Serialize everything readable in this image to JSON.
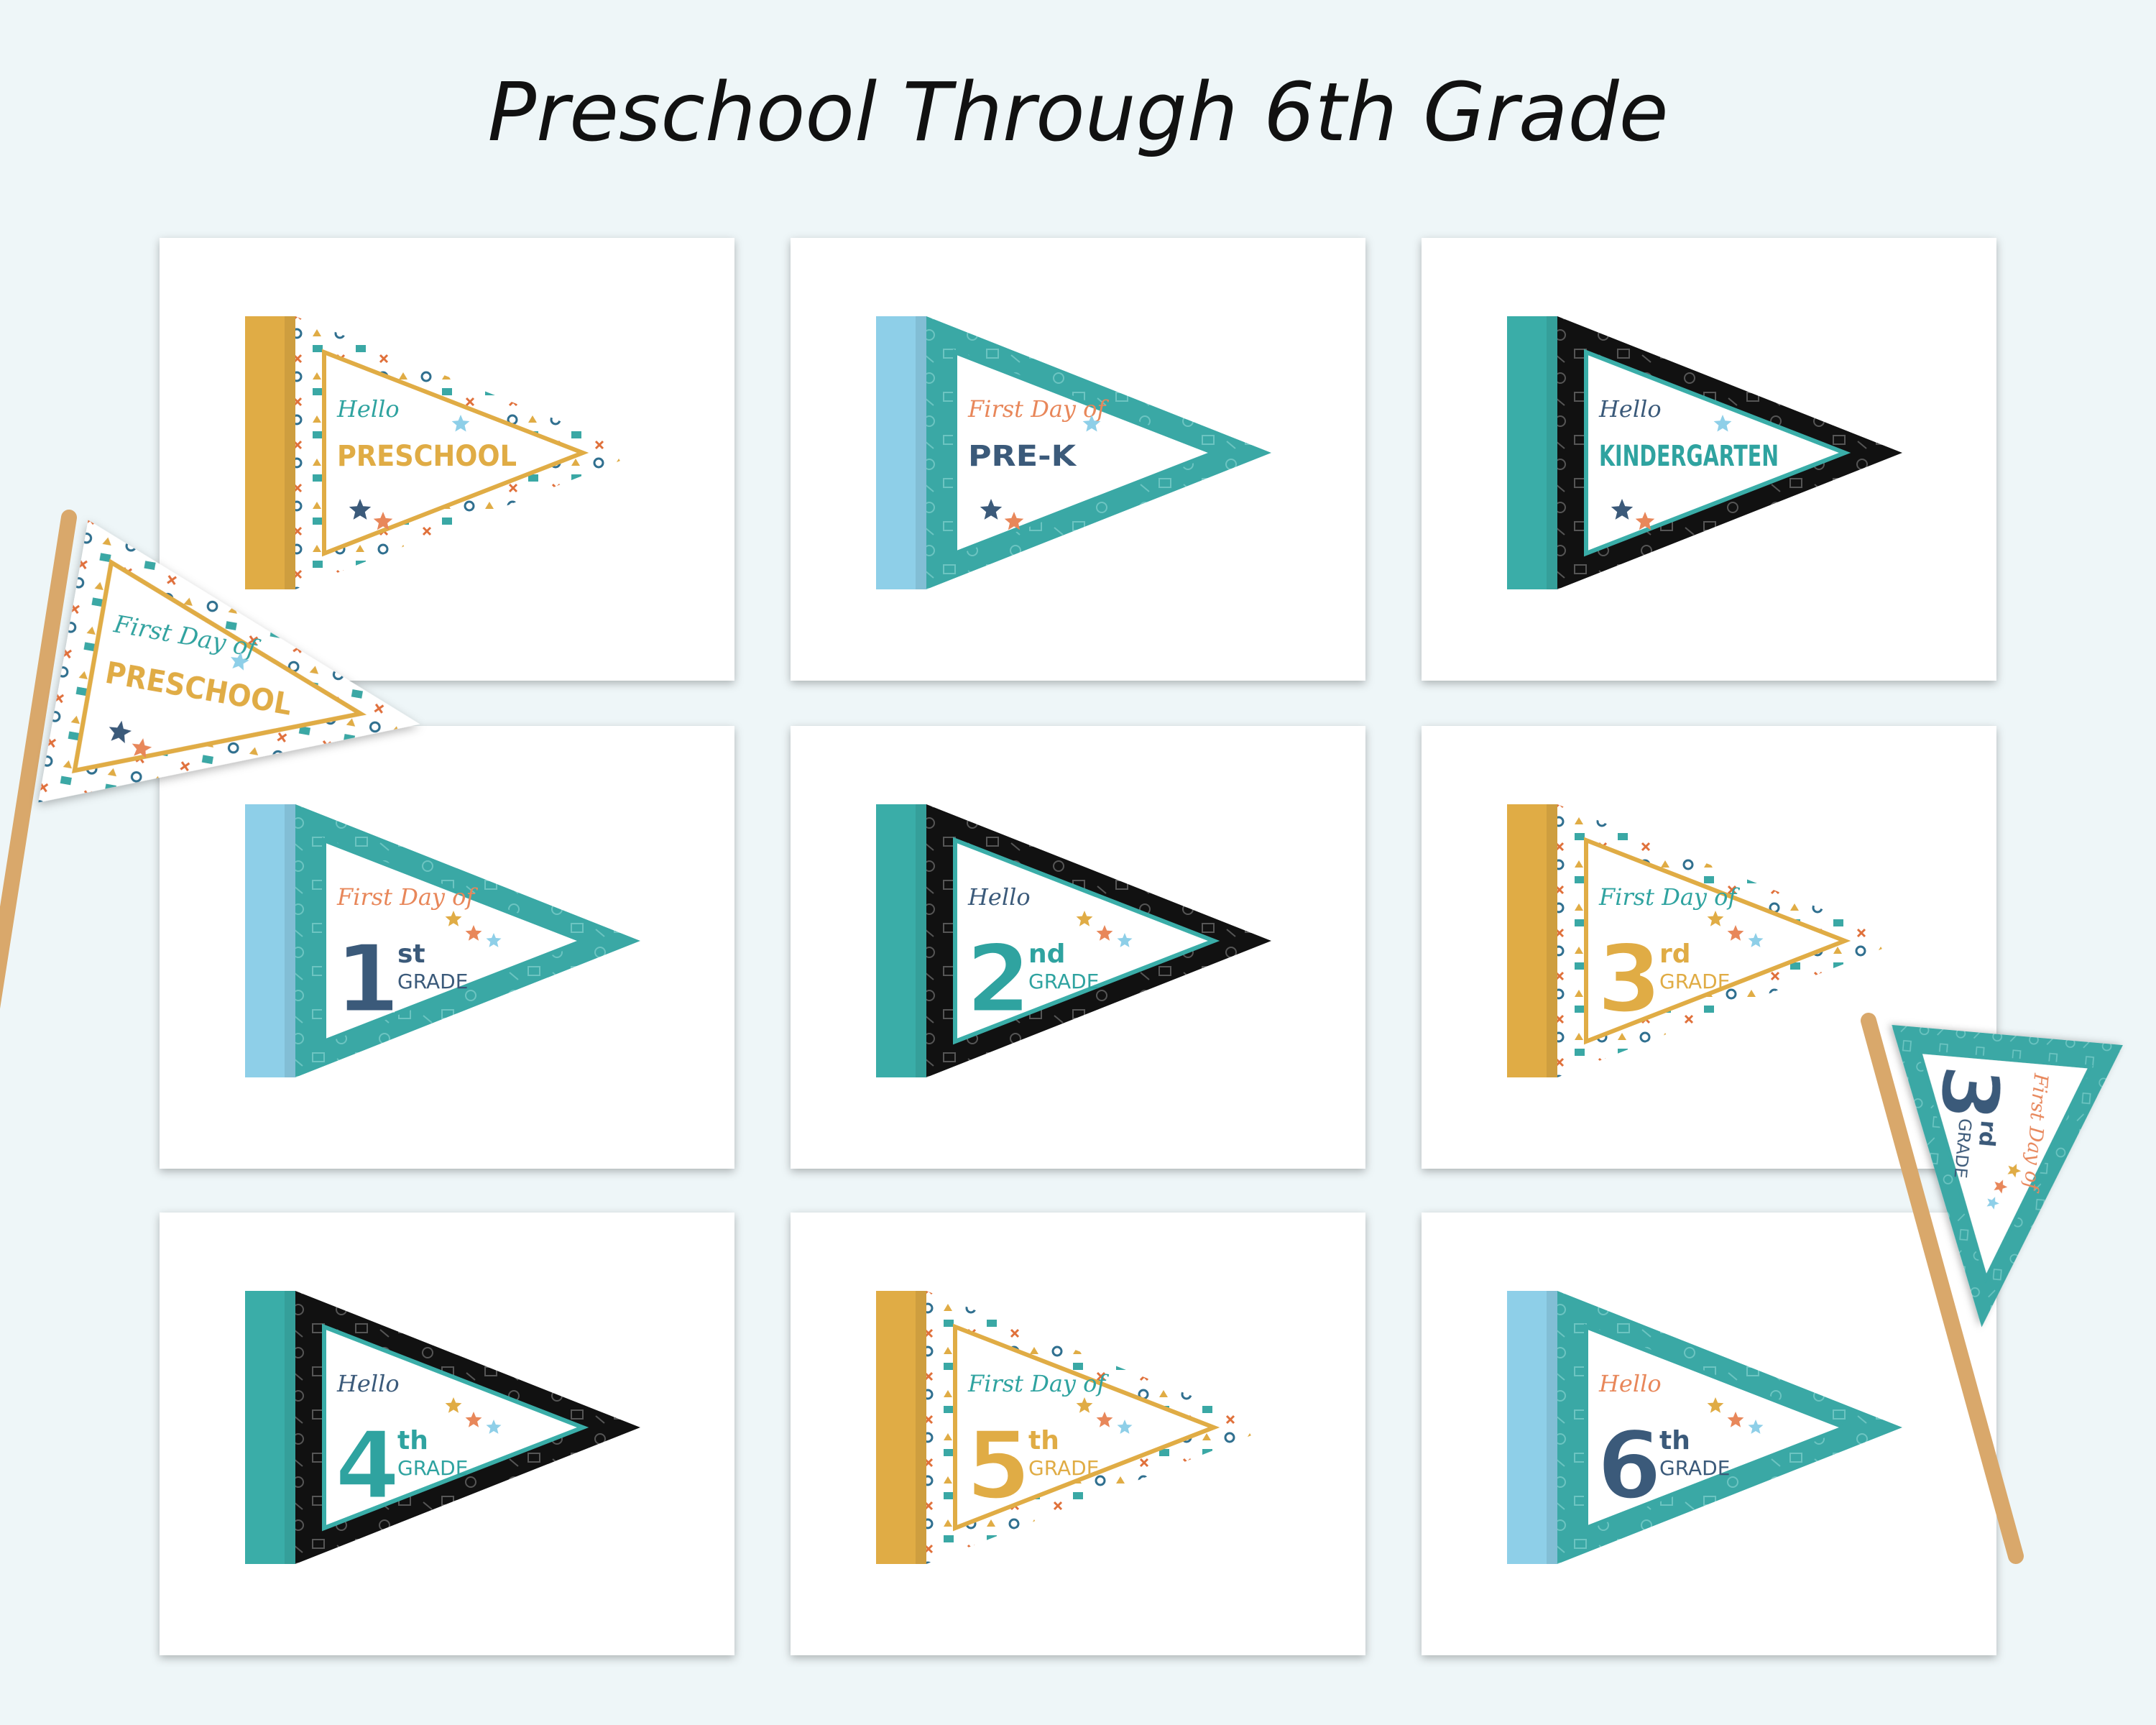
{
  "title": "Preschool Through 6th Grade",
  "cards": [
    {
      "greeting": "Hello",
      "name": "PRESCHOOL"
    },
    {
      "greeting": "First Day of",
      "name": "PRE-K"
    },
    {
      "greeting": "Hello",
      "name": "KINDERGARTEN"
    },
    {
      "greeting": "First Day of",
      "number": "1",
      "suffix": "st",
      "grade": "GRADE"
    },
    {
      "greeting": "Hello",
      "number": "2",
      "suffix": "nd",
      "grade": "GRADE"
    },
    {
      "greeting": "First Day of",
      "number": "3",
      "suffix": "rd",
      "grade": "GRADE"
    },
    {
      "greeting": "Hello",
      "number": "4",
      "suffix": "th",
      "grade": "GRADE"
    },
    {
      "greeting": "First Day of",
      "number": "5",
      "suffix": "th",
      "grade": "GRADE"
    },
    {
      "greeting": "Hello",
      "number": "6",
      "suffix": "th",
      "grade": "GRADE"
    }
  ],
  "loose_pennants": [
    {
      "greeting": "First Day of",
      "name": "PRESCHOOL"
    },
    {
      "greeting": "First Day of",
      "number": "3",
      "suffix": "rd",
      "grade": "GRADE"
    }
  ]
}
